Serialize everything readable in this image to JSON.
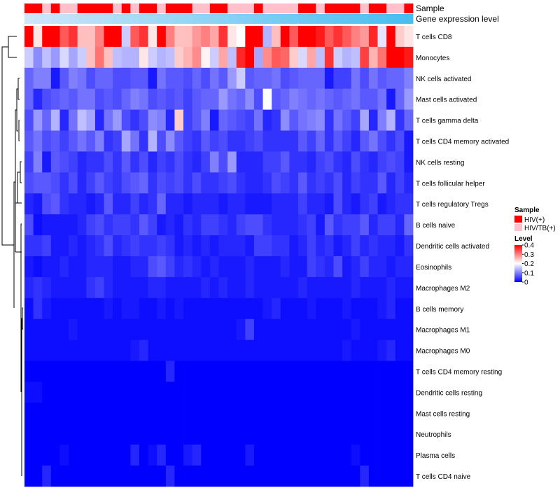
{
  "chart_data": {
    "type": "heatmap",
    "title": "",
    "annotation_tracks": [
      "Sample",
      "Gene expression level"
    ],
    "rows": [
      "T cells CD8",
      "Monocytes",
      "NK cells activated",
      "Mast cells activated",
      "T cells gamma delta",
      "T cells CD4 memory activated",
      "NK cells resting",
      "T cells follicular helper",
      "T cells regulatory  Tregs",
      "B cells naive",
      "Dendritic cells activated",
      "Eosinophils",
      "Macrophages M2",
      "B cells memory",
      "Macrophages M1",
      "Macrophages M0",
      "T cells CD4 memory resting",
      "Dendritic cells resting",
      "Mast cells resting",
      "Neutrophils",
      "Plasma cells",
      "T cells CD4 naive"
    ],
    "sample_groups": [
      "HIV(+)",
      "HIV(+)",
      "HIV/TB(+)",
      "HIV(+)",
      "HIV/TB(+)",
      "HIV/TB(+)",
      "HIV(+)",
      "HIV(+)",
      "HIV(+)",
      "HIV(+)",
      "HIV/TB(+)",
      "HIV(+)",
      "HIV/TB(+)",
      "HIV(+)",
      "HIV(+)",
      "HIV/TB(+)",
      "HIV(+)",
      "HIV(+)",
      "HIV(+)",
      "HIV/TB(+)",
      "HIV/TB(+)",
      "HIV(+)",
      "HIV(+)",
      "HIV/TB(+)",
      "HIV/TB(+)",
      "HIV/TB(+)",
      "HIV(+)",
      "HIV/TB(+)",
      "HIV/TB(+)",
      "HIV/TB(+)",
      "HIV/TB(+)",
      "HIV(+)",
      "HIV(+)",
      "HIV/TB(+)",
      "HIV(+)",
      "HIV(+)",
      "HIV(+)",
      "HIV(+)",
      "HIV/TB(+)",
      "HIV(+)",
      "HIV(+)",
      "HIV/TB(+)",
      "HIV/TB(+)",
      "HIV(+)"
    ],
    "legend": {
      "sample_title": "Sample",
      "sample_entries": [
        {
          "label": "HIV(+)",
          "color": "#ff0000"
        },
        {
          "label": "HIV/TB(+)",
          "color": "#ffc0cb"
        }
      ],
      "level_title": "Level",
      "level_ticks": [
        "0.4",
        "0.3",
        "0.2",
        "0.1",
        "0"
      ],
      "level_tick_values": [
        0.4,
        0.3,
        0.2,
        0.1,
        0
      ],
      "range": [
        0,
        0.4
      ],
      "colors": [
        "#0000ff",
        "#ffffff",
        "#ff0000"
      ]
    },
    "values": [
      [
        0.4,
        0.22,
        0.4,
        0.4,
        0.33,
        0.36,
        0.25,
        0.25,
        0.3,
        0.4,
        0.4,
        0.16,
        0.33,
        0.36,
        0.22,
        0.4,
        0.3,
        0.25,
        0.25,
        0.28,
        0.3,
        0.27,
        0.36,
        0.22,
        0.2,
        0.4,
        0.4,
        0.14,
        0.25,
        0.4,
        0.33,
        0.4,
        0.4,
        0.38,
        0.33,
        0.36,
        0.33,
        0.3,
        0.28,
        0.37,
        0.18,
        0.4,
        0.24,
        0.22
      ],
      [
        0.16,
        0.11,
        0.15,
        0.12,
        0.17,
        0.13,
        0.16,
        0.25,
        0.31,
        0.25,
        0.15,
        0.14,
        0.14,
        0.22,
        0.16,
        0.14,
        0.15,
        0.24,
        0.26,
        0.29,
        0.21,
        0.16,
        0.27,
        0.15,
        0.37,
        0.4,
        0.13,
        0.29,
        0.33,
        0.32,
        0.24,
        0.17,
        0.27,
        0.15,
        0.36,
        0.16,
        0.14,
        0.15,
        0.35,
        0.26,
        0.31,
        0.4,
        0.4,
        0.38
      ],
      [
        0.08,
        0.1,
        0.1,
        0.02,
        0.07,
        0.1,
        0.09,
        0.06,
        0.08,
        0.08,
        0.06,
        0.06,
        0.07,
        0.07,
        0.02,
        0.09,
        0.07,
        0.07,
        0.06,
        0.08,
        0.06,
        0.09,
        0.07,
        0.12,
        0.16,
        0.07,
        0.08,
        0.08,
        0.09,
        0.06,
        0.07,
        0.08,
        0.08,
        0.08,
        0.02,
        0.05,
        0.05,
        0.09,
        0.06,
        0.09,
        0.07,
        0.08,
        0.08,
        0.1
      ],
      [
        0.08,
        0.03,
        0.06,
        0.07,
        0.08,
        0.07,
        0.09,
        0.09,
        0.06,
        0.07,
        0.06,
        0.08,
        0.1,
        0.09,
        0.06,
        0.07,
        0.06,
        0.07,
        0.05,
        0.07,
        0.08,
        0.08,
        0.12,
        0.09,
        0.08,
        0.11,
        0.06,
        0.2,
        0.07,
        0.08,
        0.1,
        0.09,
        0.08,
        0.09,
        0.08,
        0.07,
        0.08,
        0.09,
        0.07,
        0.07,
        0.09,
        0.02,
        0.08,
        0.12
      ],
      [
        0.06,
        0.12,
        0.08,
        0.14,
        0.03,
        0.09,
        0.15,
        0.13,
        0.03,
        0.09,
        0.12,
        0.06,
        0.04,
        0.06,
        0.11,
        0.1,
        0.03,
        0.24,
        0.05,
        0.07,
        0.1,
        0.02,
        0.08,
        0.07,
        0.06,
        0.05,
        0.09,
        0.03,
        0.04,
        0.11,
        0.07,
        0.09,
        0.1,
        0.11,
        0.04,
        0.09,
        0.07,
        0.05,
        0.13,
        0.03,
        0.1,
        0.14,
        0.04,
        0.08
      ],
      [
        0.07,
        0.09,
        0.06,
        0.07,
        0.05,
        0.07,
        0.09,
        0.07,
        0.1,
        0.04,
        0.05,
        0.13,
        0.09,
        0.04,
        0.14,
        0.06,
        0.11,
        0.07,
        0.05,
        0.04,
        0.07,
        0.05,
        0.06,
        0.04,
        0.04,
        0.05,
        0.06,
        0.04,
        0.04,
        0.04,
        0.04,
        0.07,
        0.05,
        0.08,
        0.04,
        0.07,
        0.05,
        0.03,
        0.07,
        0.09,
        0.06,
        0.04,
        0.06,
        0.02
      ],
      [
        0.05,
        0.1,
        0.02,
        0.07,
        0.06,
        0.05,
        0.03,
        0.04,
        0.04,
        0.06,
        0.04,
        0.07,
        0.04,
        0.06,
        0.03,
        0.05,
        0.04,
        0.06,
        0.04,
        0.03,
        0.05,
        0.1,
        0.06,
        0.12,
        0.03,
        0.03,
        0.03,
        0.05,
        0.05,
        0.07,
        0.04,
        0.04,
        0.03,
        0.05,
        0.06,
        0.04,
        0.03,
        0.06,
        0.04,
        0.03,
        0.05,
        0.06,
        0.05,
        0.02
      ],
      [
        0.06,
        0.07,
        0.07,
        0.06,
        0.04,
        0.06,
        0.03,
        0.05,
        0.07,
        0.05,
        0.04,
        0.06,
        0.07,
        0.08,
        0.04,
        0.06,
        0.05,
        0.06,
        0.04,
        0.06,
        0.04,
        0.04,
        0.05,
        0.06,
        0.04,
        0.03,
        0.03,
        0.04,
        0.06,
        0.05,
        0.04,
        0.07,
        0.04,
        0.05,
        0.04,
        0.06,
        0.03,
        0.05,
        0.04,
        0.04,
        0.07,
        0.03,
        0.05,
        0.03
      ],
      [
        0.03,
        0.02,
        0.06,
        0.07,
        0.04,
        0.03,
        0.03,
        0.02,
        0.03,
        0.07,
        0.03,
        0.03,
        0.05,
        0.03,
        0.04,
        0.08,
        0.03,
        0.03,
        0.02,
        0.03,
        0.03,
        0.03,
        0.02,
        0.03,
        0.03,
        0.02,
        0.02,
        0.02,
        0.03,
        0.03,
        0.03,
        0.05,
        0.03,
        0.03,
        0.02,
        0.06,
        0.03,
        0.02,
        0.04,
        0.05,
        0.02,
        0.03,
        0.04,
        0.04
      ],
      [
        0.06,
        0.01,
        0.02,
        0.02,
        0.02,
        0.02,
        0.03,
        0.05,
        0.06,
        0.04,
        0.05,
        0.05,
        0.04,
        0.07,
        0.05,
        0.02,
        0.03,
        0.02,
        0.04,
        0.03,
        0.05,
        0.05,
        0.04,
        0.03,
        0.05,
        0.06,
        0.06,
        0.04,
        0.03,
        0.03,
        0.03,
        0.04,
        0.05,
        0.02,
        0.07,
        0.04,
        0.05,
        0.05,
        0.07,
        0.03,
        0.05,
        0.05,
        0.03,
        0.08
      ],
      [
        0.04,
        0.04,
        0.05,
        0.02,
        0.02,
        0.03,
        0.02,
        0.03,
        0.04,
        0.06,
        0.03,
        0.04,
        0.05,
        0.04,
        0.04,
        0.05,
        0.04,
        0.02,
        0.03,
        0.02,
        0.03,
        0.02,
        0.03,
        0.03,
        0.03,
        0.02,
        0.05,
        0.05,
        0.04,
        0.04,
        0.02,
        0.03,
        0.05,
        0.03,
        0.04,
        0.02,
        0.03,
        0.05,
        0.03,
        0.04,
        0.03,
        0.03,
        0.02,
        0.04
      ],
      [
        0.02,
        0.01,
        0.02,
        0.02,
        0.03,
        0.02,
        0.02,
        0.03,
        0.03,
        0.03,
        0.02,
        0.02,
        0.03,
        0.03,
        0.06,
        0.07,
        0.05,
        0.03,
        0.04,
        0.03,
        0.02,
        0.03,
        0.02,
        0.02,
        0.02,
        0.03,
        0.02,
        0.02,
        0.02,
        0.03,
        0.02,
        0.02,
        0.05,
        0.04,
        0.03,
        0.06,
        0.02,
        0.03,
        0.05,
        0.03,
        0.03,
        0.02,
        0.03,
        0.03
      ],
      [
        0.03,
        0.04,
        0.03,
        0.02,
        0.02,
        0.02,
        0.02,
        0.04,
        0.05,
        0.03,
        0.02,
        0.02,
        0.02,
        0.02,
        0.03,
        0.03,
        0.02,
        0.02,
        0.02,
        0.02,
        0.03,
        0.02,
        0.03,
        0.02,
        0.02,
        0.03,
        0.02,
        0.02,
        0.02,
        0.02,
        0.02,
        0.03,
        0.02,
        0.02,
        0.02,
        0.02,
        0.02,
        0.03,
        0.02,
        0.02,
        0.02,
        0.03,
        0.02,
        0.02
      ],
      [
        0.01,
        0.04,
        0.02,
        0.01,
        0.01,
        0.01,
        0.01,
        0.01,
        0.01,
        0.02,
        0.01,
        0.02,
        0.02,
        0.01,
        0.01,
        0.02,
        0.01,
        0.02,
        0.01,
        0.01,
        0.01,
        0.01,
        0.01,
        0.01,
        0.01,
        0.01,
        0.01,
        0.02,
        0.03,
        0.01,
        0.01,
        0.01,
        0.02,
        0.01,
        0.01,
        0.01,
        0.02,
        0.01,
        0.01,
        0.01,
        0.02,
        0.03,
        0.01,
        0.01
      ],
      [
        0.01,
        0.01,
        0.01,
        0.01,
        0.01,
        0.02,
        0.01,
        0.01,
        0.01,
        0.01,
        0.01,
        0.01,
        0.01,
        0.01,
        0.01,
        0.01,
        0.01,
        0.01,
        0.01,
        0.01,
        0.01,
        0.01,
        0.01,
        0.01,
        0.02,
        0.05,
        0.01,
        0.01,
        0.01,
        0.01,
        0.01,
        0.01,
        0.01,
        0.01,
        0.01,
        0.01,
        0.01,
        0.02,
        0.01,
        0.01,
        0.01,
        0.01,
        0.01,
        0.01
      ],
      [
        0.01,
        0.01,
        0.01,
        0.01,
        0.01,
        0.01,
        0.01,
        0.01,
        0.01,
        0.01,
        0.01,
        0.01,
        0.02,
        0.03,
        0.01,
        0.01,
        0.01,
        0.01,
        0.01,
        0.01,
        0.01,
        0.01,
        0.01,
        0.01,
        0.01,
        0.01,
        0.01,
        0.01,
        0.01,
        0.01,
        0.01,
        0.01,
        0.01,
        0.01,
        0.01,
        0.01,
        0.02,
        0.01,
        0.01,
        0.01,
        0.02,
        0.03,
        0.01,
        0.01
      ],
      [
        0.0,
        0.0,
        0.0,
        0.0,
        0.0,
        0.0,
        0.0,
        0.0,
        0.0,
        0.0,
        0.0,
        0.0,
        0.0,
        0.0,
        0.0,
        0.0,
        0.03,
        0.0,
        0.0,
        0.0,
        0.0,
        0.0,
        0.0,
        0.0,
        0.0,
        0.0,
        0.0,
        0.0,
        0.0,
        0.0,
        0.0,
        0.0,
        0.0,
        0.0,
        0.0,
        0.0,
        0.0,
        0.0,
        0.0,
        0.0,
        0.0,
        0.0,
        0.0,
        0.0
      ],
      [
        0.01,
        0.01,
        0.0,
        0.0,
        0.0,
        0.0,
        0.0,
        0.0,
        0.0,
        0.0,
        0.0,
        0.0,
        0.0,
        0.0,
        0.0,
        0.0,
        0.0,
        0.0,
        0.0,
        0.0,
        0.0,
        0.0,
        0.0,
        0.0,
        0.0,
        0.0,
        0.0,
        0.0,
        0.0,
        0.0,
        0.0,
        0.0,
        0.0,
        0.0,
        0.0,
        0.0,
        0.0,
        0.0,
        0.0,
        0.0,
        0.0,
        0.0,
        0.0,
        0.0
      ],
      [
        0.0,
        0.0,
        0.0,
        0.0,
        0.0,
        0.0,
        0.0,
        0.0,
        0.0,
        0.0,
        0.0,
        0.0,
        0.0,
        0.0,
        0.0,
        0.0,
        0.0,
        0.0,
        0.0,
        0.0,
        0.0,
        0.0,
        0.0,
        0.0,
        0.0,
        0.0,
        0.0,
        0.0,
        0.0,
        0.0,
        0.0,
        0.0,
        0.0,
        0.0,
        0.0,
        0.0,
        0.0,
        0.0,
        0.0,
        0.0,
        0.0,
        0.0,
        0.0,
        0.0
      ],
      [
        0.0,
        0.0,
        0.0,
        0.0,
        0.0,
        0.0,
        0.0,
        0.0,
        0.0,
        0.0,
        0.0,
        0.0,
        0.0,
        0.0,
        0.0,
        0.0,
        0.0,
        0.0,
        0.0,
        0.0,
        0.0,
        0.0,
        0.0,
        0.0,
        0.0,
        0.0,
        0.0,
        0.0,
        0.0,
        0.0,
        0.0,
        0.0,
        0.0,
        0.0,
        0.0,
        0.0,
        0.0,
        0.0,
        0.0,
        0.0,
        0.0,
        0.0,
        0.0,
        0.0
      ],
      [
        0.0,
        0.0,
        0.0,
        0.0,
        0.01,
        0.0,
        0.0,
        0.0,
        0.0,
        0.0,
        0.0,
        0.0,
        0.03,
        0.0,
        0.01,
        0.03,
        0.0,
        0.0,
        0.02,
        0.03,
        0.0,
        0.0,
        0.0,
        0.0,
        0.0,
        0.02,
        0.0,
        0.0,
        0.0,
        0.0,
        0.0,
        0.0,
        0.0,
        0.0,
        0.0,
        0.0,
        0.0,
        0.01,
        0.0,
        0.0,
        0.0,
        0.0,
        0.0,
        0.0
      ],
      [
        0.0,
        0.0,
        0.03,
        0.0,
        0.0,
        0.0,
        0.0,
        0.0,
        0.0,
        0.0,
        0.0,
        0.0,
        0.0,
        0.0,
        0.0,
        0.0,
        0.03,
        0.0,
        0.0,
        0.0,
        0.0,
        0.0,
        0.0,
        0.0,
        0.0,
        0.0,
        0.0,
        0.0,
        0.0,
        0.0,
        0.0,
        0.0,
        0.0,
        0.0,
        0.0,
        0.0,
        0.0,
        0.0,
        0.03,
        0.0,
        0.0,
        0.0,
        0.0,
        0.0
      ]
    ]
  }
}
